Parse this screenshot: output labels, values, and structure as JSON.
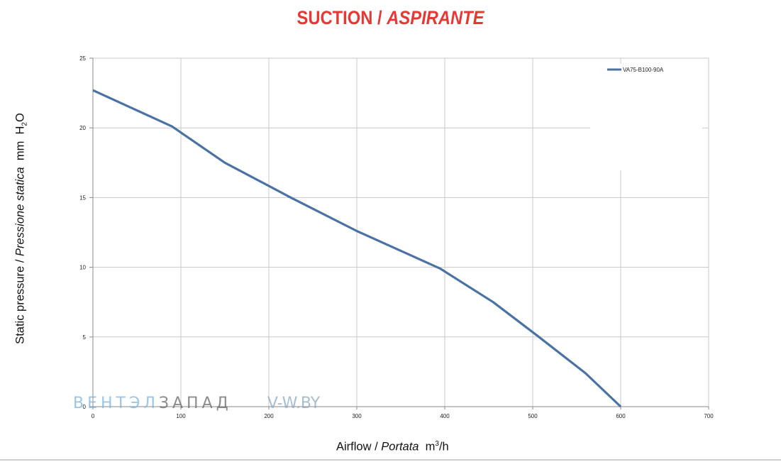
{
  "title": {
    "main": "SUCTION",
    "separator": " / ",
    "italic": "ASPIRANTE",
    "color": "#e53935"
  },
  "axis_labels": {
    "y_main": "Static pressure",
    "y_sep": " / ",
    "y_italic": "Pressione statica",
    "y_unit_pre": "  mm  H",
    "y_unit_sub": "2",
    "y_unit_post": "O",
    "x_main": "Airflow",
    "x_sep": " / ",
    "x_italic": "Portata",
    "x_unit_pre": "  m",
    "x_unit_sup": "3",
    "x_unit_post": "/h"
  },
  "watermark": {
    "part1": "ВЕНТЭЛ",
    "part2": "ЗАПАД",
    "part3": "V-W.BY"
  },
  "chart_data": {
    "type": "line",
    "xlim": [
      0,
      700
    ],
    "ylim": [
      0,
      25
    ],
    "xticks": [
      0,
      100,
      200,
      300,
      400,
      500,
      600,
      700
    ],
    "yticks": [
      0,
      5,
      10,
      15,
      20,
      25
    ],
    "grid": true,
    "legend_position": "top-right",
    "line_color": "#4a72a4",
    "series": [
      {
        "name": "VA75-B100-90A",
        "x": [
          0,
          90,
          150,
          225,
          300,
          395,
          455,
          505,
          560,
          600
        ],
        "y": [
          22.7,
          20.1,
          17.5,
          15.0,
          12.6,
          9.9,
          7.5,
          5.1,
          2.4,
          0
        ]
      }
    ]
  }
}
